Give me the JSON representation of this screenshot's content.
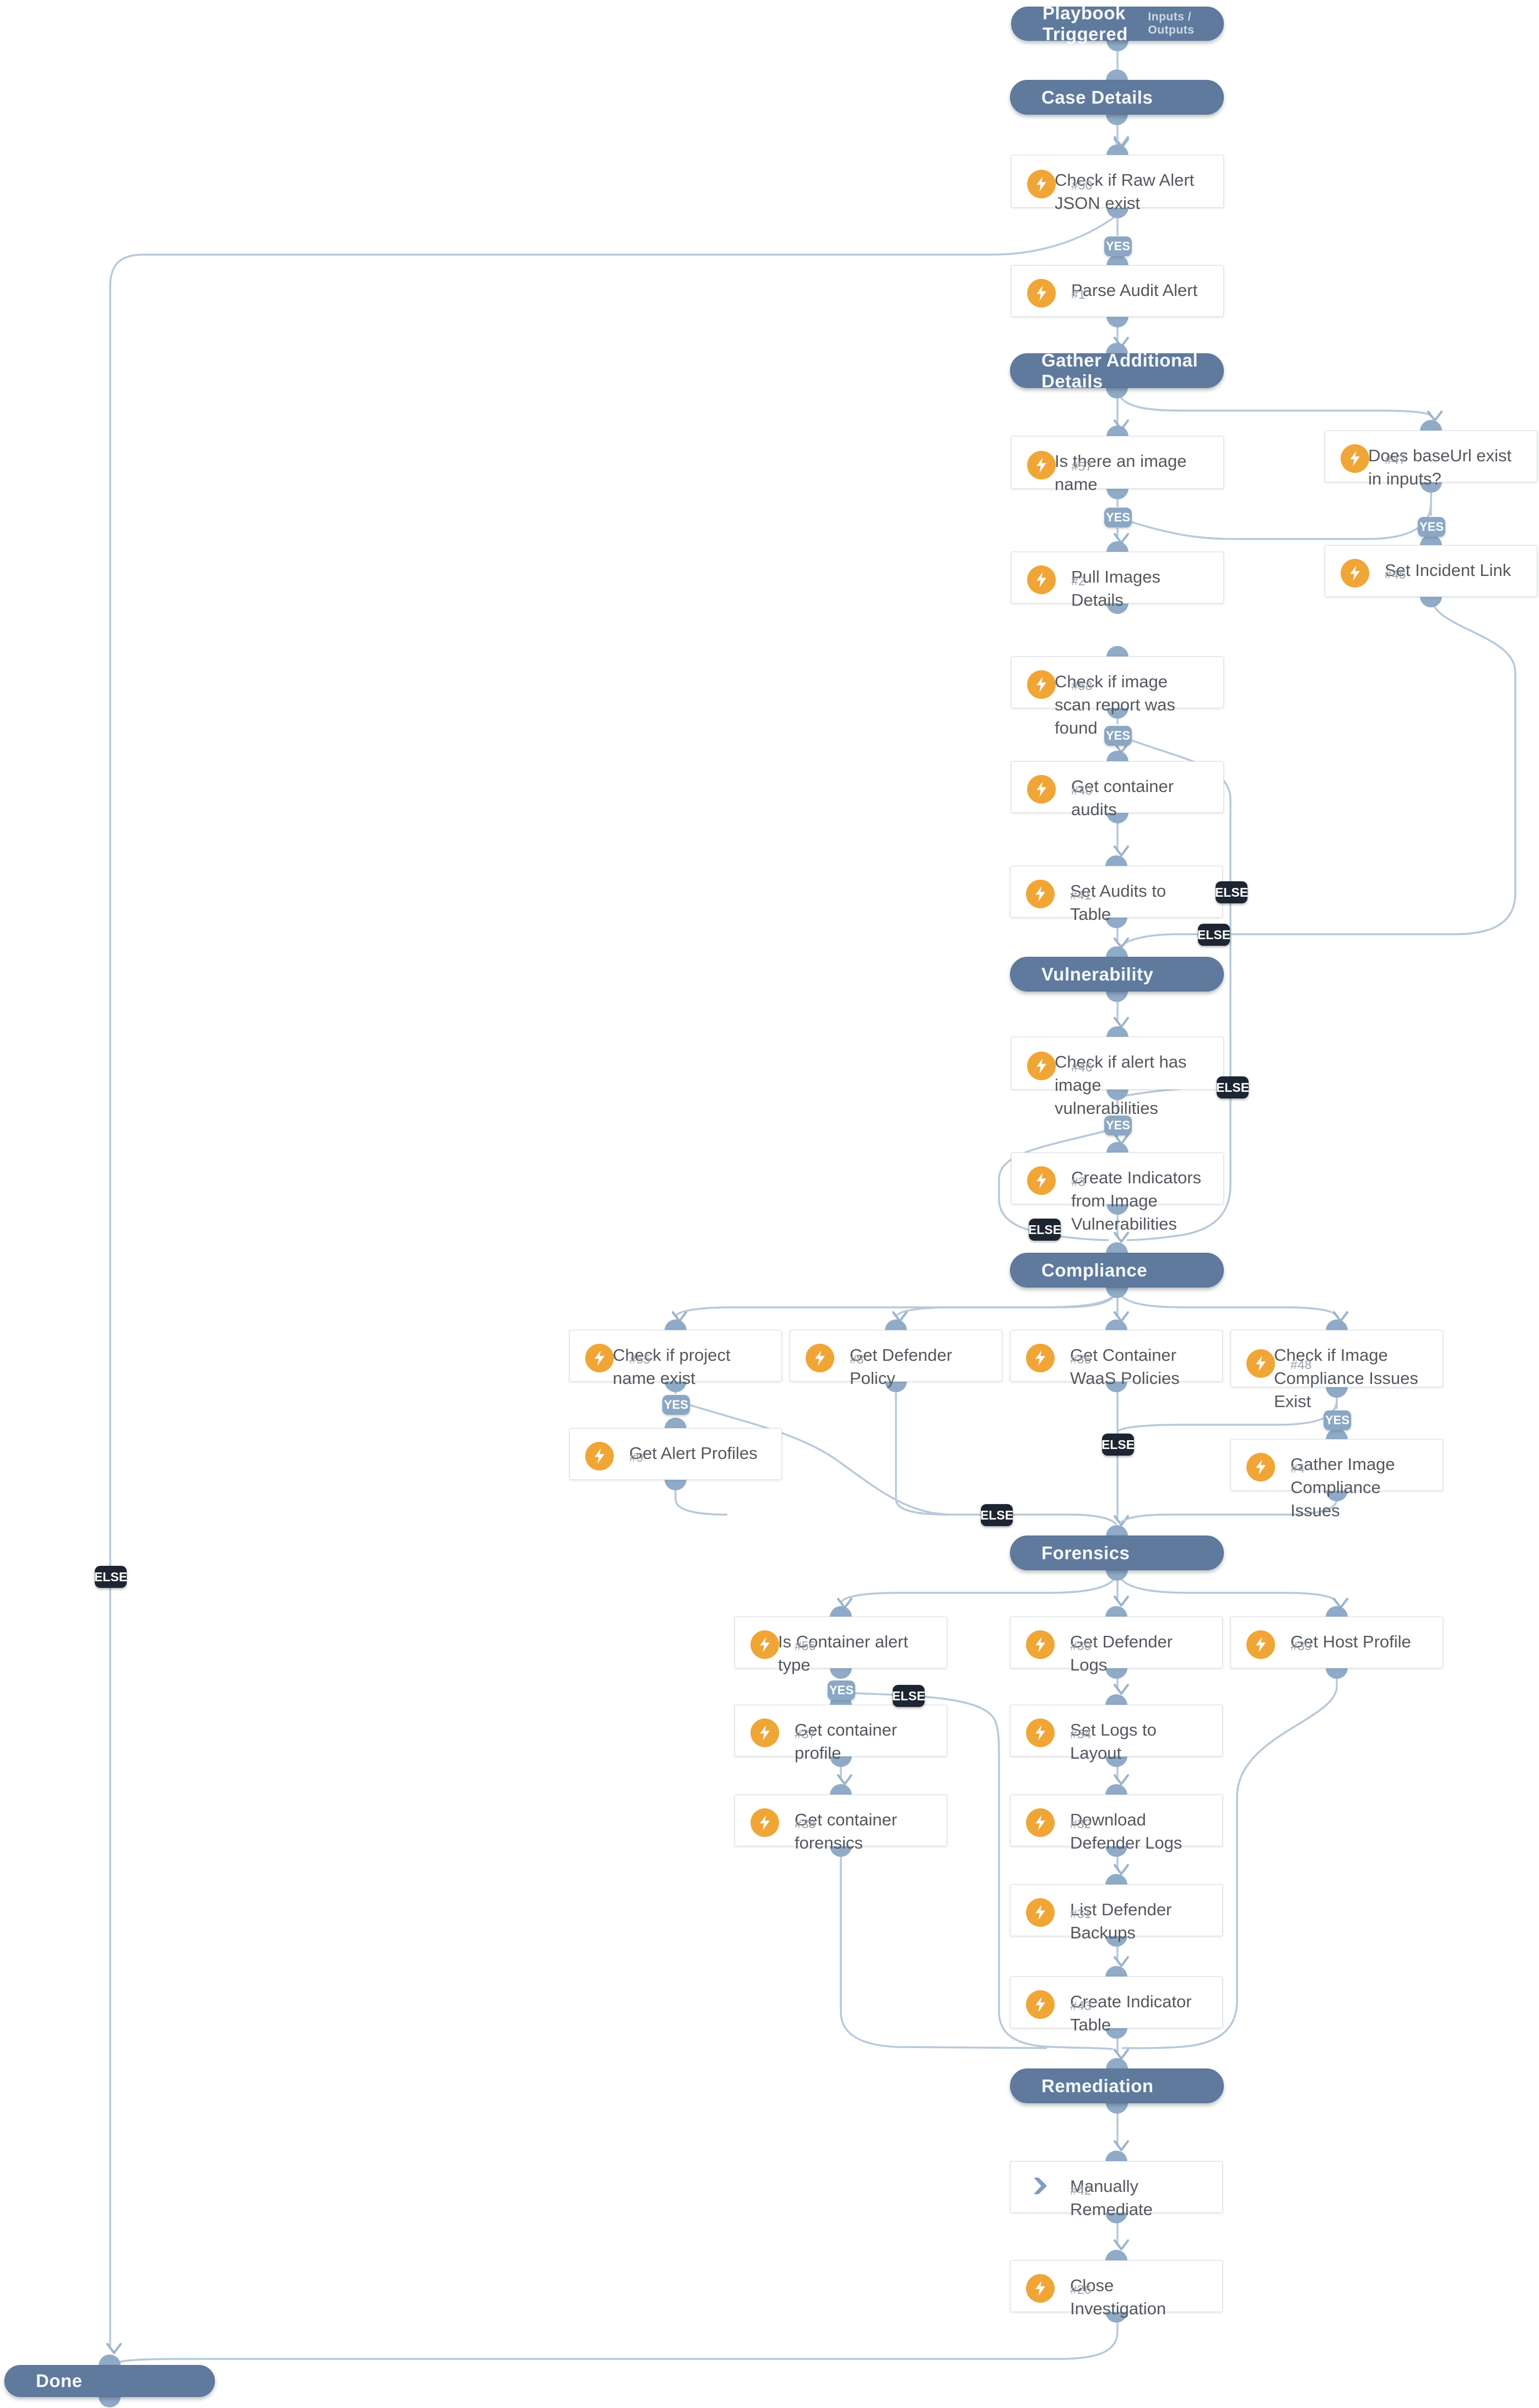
{
  "playbook": {
    "start_label": "Playbook Triggered",
    "start_link": "Inputs / Outputs",
    "end_label": "Done",
    "branch_labels": {
      "yes": "YES",
      "else": "ELSE"
    }
  },
  "palette": {
    "section_fill": "#5f7a9d",
    "node_fill": "#ffffff",
    "connector": "#b7c9da",
    "port": "#8fabc7",
    "yes_badge": "#8ba7c4",
    "else_badge": "#1c2531",
    "condition_icon": "#7e9dc0",
    "automation_icon": "#f0a636",
    "title_text": "#54585e",
    "task_number_text": "#9ba2a9"
  },
  "nodes": [
    {
      "kind": "start",
      "title": "Playbook Triggered",
      "link": "Inputs / Outputs",
      "num": "",
      "bolt": false
    },
    {
      "kind": "section",
      "title": "Case Details",
      "num": "",
      "bolt": false
    },
    {
      "kind": "condition",
      "title": "Check if Raw Alert JSON exist",
      "num": "#50",
      "bolt": true
    },
    {
      "kind": "task",
      "title": "Parse Audit Alert",
      "num": "#1",
      "bolt": true
    },
    {
      "kind": "section",
      "title": "Gather Additional Details",
      "num": "",
      "bolt": false
    },
    {
      "kind": "condition",
      "title": "Is there an image name",
      "num": "#57",
      "bolt": true
    },
    {
      "kind": "condition",
      "title": "Does baseUrl exist in inputs?",
      "num": "#47",
      "bolt": true
    },
    {
      "kind": "task",
      "title": "Pull Images Details",
      "num": "#2",
      "bolt": true
    },
    {
      "kind": "task",
      "title": "Set Incident Link",
      "num": "#45",
      "bolt": true
    },
    {
      "kind": "condition",
      "title": "Check if image scan report was found",
      "num": "#58",
      "bolt": true
    },
    {
      "kind": "task",
      "title": "Get container audits",
      "num": "#40",
      "bolt": true
    },
    {
      "kind": "task",
      "title": "Set Audits to Table",
      "num": "#41",
      "bolt": true
    },
    {
      "kind": "section",
      "title": "Vulnerability",
      "num": "",
      "bolt": false
    },
    {
      "kind": "condition",
      "title": "Check if alert has image vulnerabilities",
      "num": "#46",
      "bolt": true
    },
    {
      "kind": "task",
      "title": "Create Indicators from Image Vulnerabilities",
      "num": "#3",
      "bolt": true
    },
    {
      "kind": "section",
      "title": "Compliance",
      "num": "",
      "bolt": false
    },
    {
      "kind": "condition",
      "title": "Check if project name exist",
      "num": "#55",
      "bolt": true
    },
    {
      "kind": "task",
      "title": "Get Defender Policy",
      "num": "#8",
      "bolt": true
    },
    {
      "kind": "task",
      "title": "Get Container WaaS Policies",
      "num": "#36",
      "bolt": true
    },
    {
      "kind": "condition",
      "title": "Check if Image Compliance Issues Exist",
      "num": "#48",
      "bolt": true
    },
    {
      "kind": "task",
      "title": "Get Alert Profiles",
      "num": "#9",
      "bolt": true
    },
    {
      "kind": "task",
      "title": "Gather Image Compliance Issues",
      "num": "#4",
      "bolt": true
    },
    {
      "kind": "section",
      "title": "Forensics",
      "num": "",
      "bolt": false
    },
    {
      "kind": "condition",
      "title": "Is Container alert type",
      "num": "#56",
      "bolt": true
    },
    {
      "kind": "task",
      "title": "Get Defender Logs",
      "num": "#30",
      "bolt": true
    },
    {
      "kind": "task",
      "title": "Get Host Profile",
      "num": "#39",
      "bolt": true
    },
    {
      "kind": "task",
      "title": "Get container profile",
      "num": "#37",
      "bolt": true
    },
    {
      "kind": "task",
      "title": "Set Logs to Layout",
      "num": "#34",
      "bolt": true
    },
    {
      "kind": "task",
      "title": "Get container forensics",
      "num": "#38",
      "bolt": true
    },
    {
      "kind": "task",
      "title": "Download Defender Logs",
      "num": "#32",
      "bolt": true
    },
    {
      "kind": "task",
      "title": "List Defender Backups",
      "num": "#31",
      "bolt": true
    },
    {
      "kind": "task",
      "title": "Create Indicator Table",
      "num": "#43",
      "bolt": true
    },
    {
      "kind": "section",
      "title": "Remediation",
      "num": "",
      "bolt": false
    },
    {
      "kind": "task",
      "title": "Manually Remediate",
      "num": "#42",
      "bolt": false
    },
    {
      "kind": "task",
      "title": "Close Investigation",
      "num": "#26",
      "bolt": true
    },
    {
      "kind": "end",
      "title": "Done",
      "num": "",
      "bolt": false
    }
  ],
  "flow_labels": [
    {
      "label": "YES"
    },
    {
      "label": "YES"
    },
    {
      "label": "YES"
    },
    {
      "label": "YES"
    },
    {
      "label": "YES"
    },
    {
      "label": "YES"
    },
    {
      "label": "YES"
    },
    {
      "label": "YES"
    },
    {
      "label": "ELSE"
    },
    {
      "label": "ELSE"
    },
    {
      "label": "ELSE"
    },
    {
      "label": "ELSE"
    },
    {
      "label": "ELSE"
    },
    {
      "label": "ELSE"
    },
    {
      "label": "ELSE"
    },
    {
      "label": "ELSE"
    }
  ]
}
